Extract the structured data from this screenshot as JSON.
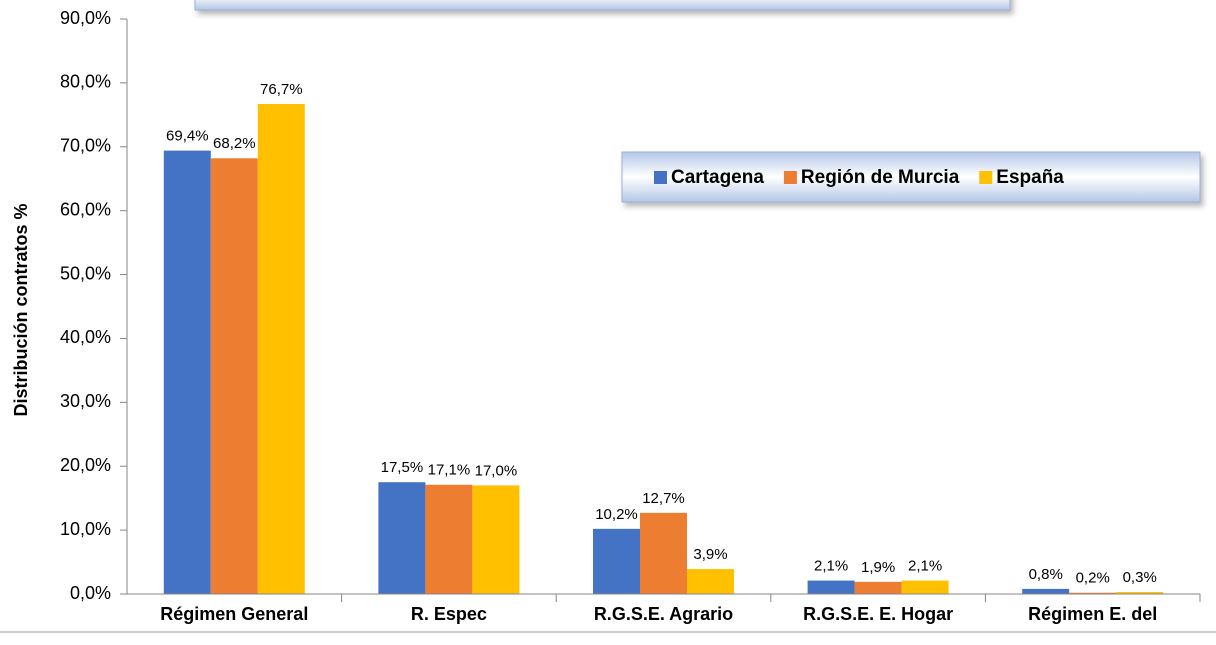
{
  "chart_data": {
    "type": "bar",
    "y_label": "Distribución contratos %",
    "categories": [
      "Régimen General",
      "R. Espec",
      "R.G.S.E. Agrario",
      "R.G.S.E. E. Hogar",
      "Régimen E. del"
    ],
    "series": [
      {
        "name": "Cartagena",
        "color": "#4472c4",
        "values": [
          69.4,
          17.5,
          10.2,
          2.1,
          0.8
        ],
        "value_labels": [
          "69,4%",
          "17,5%",
          "10,2%",
          "2,1%",
          "0,8%"
        ]
      },
      {
        "name": "Región de Murcia",
        "color": "#ed7d31",
        "values": [
          68.2,
          17.1,
          12.7,
          1.9,
          0.2
        ],
        "value_labels": [
          "68,2%",
          "17,1%",
          "12,7%",
          "1,9%",
          "0,2%"
        ]
      },
      {
        "name": "España",
        "color": "#ffc000",
        "values": [
          76.7,
          17.0,
          3.9,
          2.1,
          0.3
        ],
        "value_labels": [
          "76,7%",
          "17,0%",
          "3,9%",
          "2,1%",
          "0,3%"
        ]
      }
    ],
    "ylim": [
      0,
      90
    ],
    "yticks": [
      {
        "value": 0,
        "label": "0,0%"
      },
      {
        "value": 10,
        "label": "10,0%"
      },
      {
        "value": 20,
        "label": "20,0%"
      },
      {
        "value": 30,
        "label": "30,0%"
      },
      {
        "value": 40,
        "label": "40,0%"
      },
      {
        "value": 50,
        "label": "50,0%"
      },
      {
        "value": 60,
        "label": "60,0%"
      },
      {
        "value": 70,
        "label": "70,0%"
      },
      {
        "value": 80,
        "label": "80,0%"
      },
      {
        "value": 90,
        "label": "90,0%"
      }
    ],
    "grid": false,
    "legend": "right"
  }
}
